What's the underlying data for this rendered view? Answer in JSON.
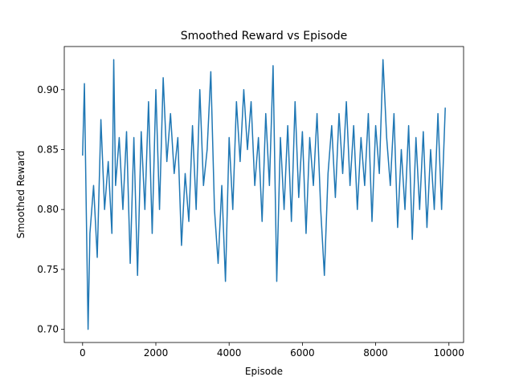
{
  "chart_data": {
    "type": "line",
    "title": "Smoothed Reward vs Episode",
    "x_label": "Episode",
    "y_label": "Smoothed Reward",
    "x": [
      0,
      50,
      100,
      150,
      200,
      300,
      400,
      500,
      600,
      700,
      800,
      850,
      900,
      1000,
      1100,
      1200,
      1300,
      1400,
      1500,
      1600,
      1700,
      1800,
      1900,
      2000,
      2100,
      2200,
      2300,
      2400,
      2500,
      2600,
      2700,
      2800,
      2900,
      3000,
      3100,
      3200,
      3300,
      3400,
      3500,
      3600,
      3700,
      3800,
      3900,
      4000,
      4100,
      4200,
      4300,
      4400,
      4500,
      4600,
      4700,
      4800,
      4900,
      5000,
      5100,
      5200,
      5300,
      5400,
      5500,
      5600,
      5700,
      5800,
      5900,
      6000,
      6100,
      6200,
      6300,
      6400,
      6500,
      6600,
      6700,
      6800,
      6900,
      7000,
      7100,
      7200,
      7300,
      7400,
      7500,
      7600,
      7700,
      7800,
      7900,
      8000,
      8100,
      8200,
      8300,
      8400,
      8500,
      8600,
      8700,
      8800,
      8900,
      9000,
      9100,
      9200,
      9300,
      9400,
      9500,
      9600,
      9700,
      9800,
      9900
    ],
    "series": [
      {
        "name": "Smoothed Reward",
        "color": "#1f77b4",
        "values": [
          0.845,
          0.905,
          0.8,
          0.7,
          0.78,
          0.82,
          0.76,
          0.875,
          0.8,
          0.84,
          0.78,
          0.925,
          0.82,
          0.86,
          0.8,
          0.865,
          0.755,
          0.86,
          0.745,
          0.865,
          0.8,
          0.89,
          0.78,
          0.9,
          0.8,
          0.91,
          0.84,
          0.88,
          0.83,
          0.86,
          0.77,
          0.83,
          0.79,
          0.87,
          0.8,
          0.9,
          0.82,
          0.85,
          0.915,
          0.8,
          0.755,
          0.82,
          0.74,
          0.86,
          0.8,
          0.89,
          0.84,
          0.9,
          0.85,
          0.89,
          0.82,
          0.86,
          0.79,
          0.88,
          0.82,
          0.92,
          0.74,
          0.86,
          0.8,
          0.87,
          0.79,
          0.89,
          0.81,
          0.865,
          0.78,
          0.86,
          0.82,
          0.88,
          0.8,
          0.745,
          0.83,
          0.87,
          0.81,
          0.88,
          0.83,
          0.89,
          0.82,
          0.87,
          0.8,
          0.86,
          0.82,
          0.88,
          0.79,
          0.87,
          0.83,
          0.925,
          0.86,
          0.82,
          0.88,
          0.785,
          0.85,
          0.8,
          0.87,
          0.775,
          0.86,
          0.8,
          0.865,
          0.785,
          0.85,
          0.8,
          0.88,
          0.8,
          0.885
        ]
      }
    ],
    "xlim": [
      -500,
      10400
    ],
    "ylim": [
      0.689,
      0.936
    ],
    "xticks": [
      0,
      2000,
      4000,
      6000,
      8000,
      10000
    ],
    "yticks": [
      {
        "value": 0.7,
        "label": "0.70"
      },
      {
        "value": 0.75,
        "label": "0.75"
      },
      {
        "value": 0.8,
        "label": "0.80"
      },
      {
        "value": 0.85,
        "label": "0.85"
      },
      {
        "value": 0.9,
        "label": "0.90"
      }
    ]
  }
}
